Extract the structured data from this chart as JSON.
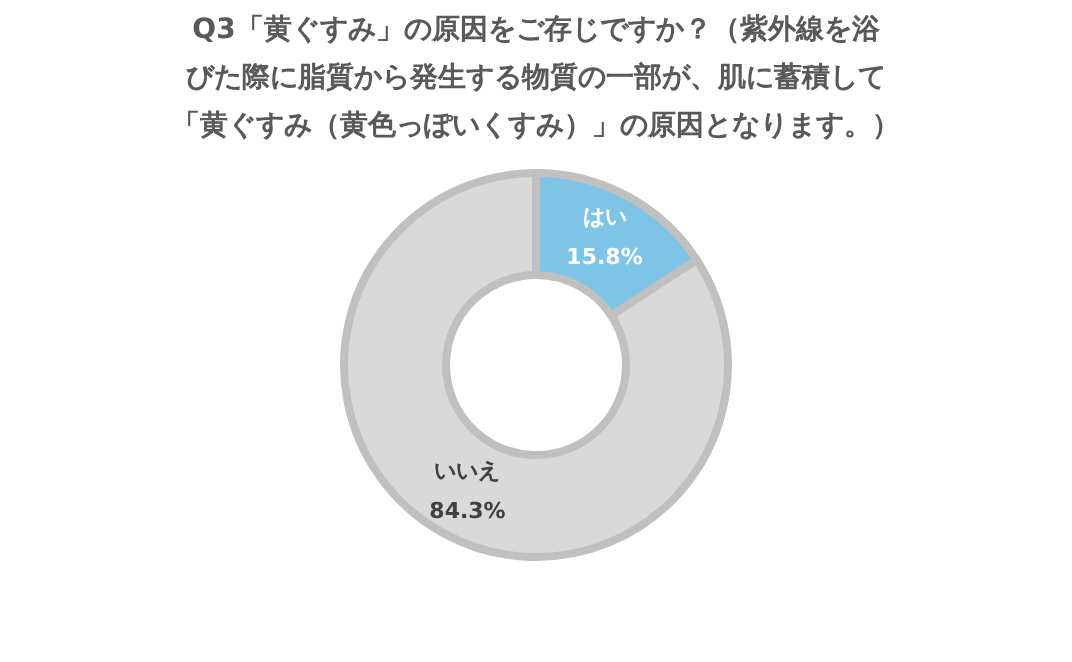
{
  "chart_data": {
    "type": "donut",
    "title": [
      "Q3「黄ぐすみ」の原因をご存じですか？（紫外線を浴",
      "びた際に脂質から発生する物質の一部が、肌に蓄積して",
      "「黄ぐすみ（黄色っぽいくすみ）」の原因となります。）"
    ],
    "categories": [
      "はい",
      "いいえ"
    ],
    "values": [
      15.8,
      84.3
    ],
    "value_labels": [
      "15.8%",
      "84.3%"
    ],
    "colors": [
      "#7dc4e6",
      "#d9d9d9"
    ],
    "legend": false
  }
}
